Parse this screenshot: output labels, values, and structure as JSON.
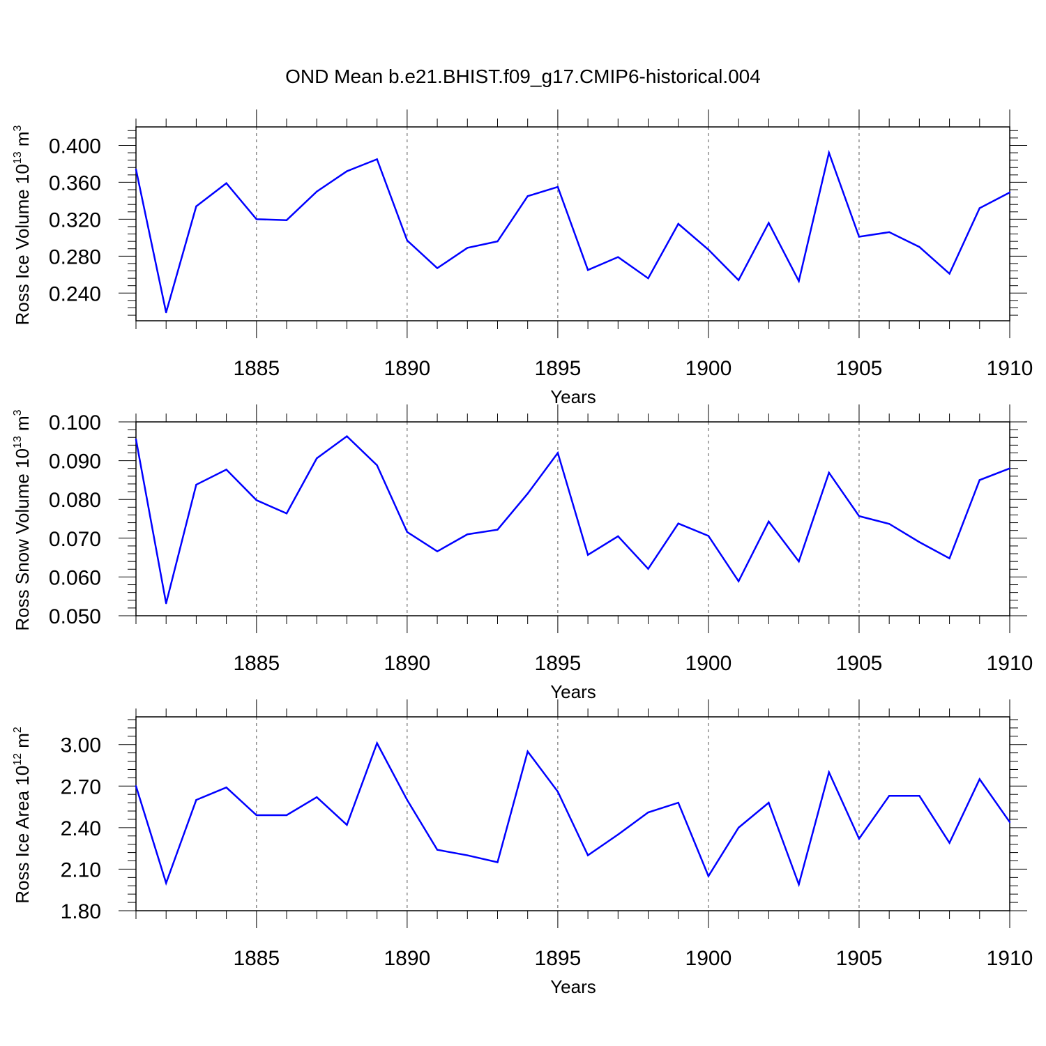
{
  "title": "OND Mean b.e21.BHIST.f09_g17.CMIP6-historical.004",
  "chart_data": [
    {
      "type": "line",
      "name": "ross-ice-volume",
      "ylabel_main": "Ross Ice Volume 10",
      "ylabel_exp": "13",
      "ylabel_unit": " m",
      "ylabel_unit_exp": "3",
      "xlabel": "Years",
      "xlim": [
        1881,
        1910
      ],
      "ylim": [
        0.21,
        0.42
      ],
      "ytick_values": [
        0.24,
        0.28,
        0.32,
        0.36,
        0.4
      ],
      "ytick_labels": [
        "0.240",
        "0.280",
        "0.320",
        "0.360",
        "0.400"
      ],
      "xtick_values": [
        1885,
        1890,
        1895,
        1900,
        1905,
        1910
      ],
      "xtick_labels": [
        "1885",
        "1890",
        "1895",
        "1900",
        "1905",
        "1910"
      ],
      "gridlines": "dashed vertical at major x ticks",
      "line_color": "#0000ff",
      "x": [
        1881,
        1882,
        1883,
        1884,
        1885,
        1886,
        1887,
        1888,
        1889,
        1890,
        1891,
        1892,
        1893,
        1894,
        1895,
        1896,
        1897,
        1898,
        1899,
        1900,
        1901,
        1902,
        1903,
        1904,
        1905,
        1906,
        1907,
        1908,
        1909,
        1910
      ],
      "values": [
        0.374,
        0.219,
        0.334,
        0.359,
        0.32,
        0.319,
        0.35,
        0.372,
        0.385,
        0.297,
        0.267,
        0.289,
        0.296,
        0.345,
        0.355,
        0.265,
        0.279,
        0.256,
        0.315,
        0.287,
        0.254,
        0.316,
        0.253,
        0.392,
        0.301,
        0.306,
        0.29,
        0.261,
        0.332,
        0.349
      ]
    },
    {
      "type": "line",
      "name": "ross-snow-volume",
      "ylabel_main": "Ross Snow Volume 10",
      "ylabel_exp": "13",
      "ylabel_unit": " m",
      "ylabel_unit_exp": "3",
      "xlabel": "Years",
      "xlim": [
        1881,
        1910
      ],
      "ylim": [
        0.05,
        0.1
      ],
      "ytick_values": [
        0.05,
        0.06,
        0.07,
        0.08,
        0.09,
        0.1
      ],
      "ytick_labels": [
        "0.050",
        "0.060",
        "0.070",
        "0.080",
        "0.090",
        "0.100"
      ],
      "xtick_values": [
        1885,
        1890,
        1895,
        1900,
        1905,
        1910
      ],
      "xtick_labels": [
        "1885",
        "1890",
        "1895",
        "1900",
        "1905",
        "1910"
      ],
      "gridlines": "dashed vertical at major x ticks",
      "line_color": "#0000ff",
      "x": [
        1881,
        1882,
        1883,
        1884,
        1885,
        1886,
        1887,
        1888,
        1889,
        1890,
        1891,
        1892,
        1893,
        1894,
        1895,
        1896,
        1897,
        1898,
        1899,
        1900,
        1901,
        1902,
        1903,
        1904,
        1905,
        1906,
        1907,
        1908,
        1909,
        1910
      ],
      "values": [
        0.0955,
        0.0532,
        0.0838,
        0.0877,
        0.0798,
        0.0764,
        0.0906,
        0.0963,
        0.0888,
        0.0716,
        0.0666,
        0.071,
        0.0722,
        0.0815,
        0.092,
        0.0657,
        0.0705,
        0.0621,
        0.0738,
        0.0706,
        0.0589,
        0.0743,
        0.064,
        0.0869,
        0.0757,
        0.0737,
        0.069,
        0.0648,
        0.085,
        0.088
      ]
    },
    {
      "type": "line",
      "name": "ross-ice-area",
      "ylabel_main": "Ross Ice Area 10",
      "ylabel_exp": "12",
      "ylabel_unit": " m",
      "ylabel_unit_exp": "2",
      "xlabel": "Years",
      "xlim": [
        1881,
        1910
      ],
      "ylim": [
        1.8,
        3.2
      ],
      "ytick_values": [
        1.8,
        2.1,
        2.4,
        2.7,
        3.0
      ],
      "ytick_labels": [
        "1.80",
        "2.10",
        "2.40",
        "2.70",
        "3.00"
      ],
      "xtick_values": [
        1885,
        1890,
        1895,
        1900,
        1905,
        1910
      ],
      "xtick_labels": [
        "1885",
        "1890",
        "1895",
        "1900",
        "1905",
        "1910"
      ],
      "gridlines": "dashed vertical at major x ticks",
      "line_color": "#0000ff",
      "x": [
        1881,
        1882,
        1883,
        1884,
        1885,
        1886,
        1887,
        1888,
        1889,
        1890,
        1891,
        1892,
        1893,
        1894,
        1895,
        1896,
        1897,
        1898,
        1899,
        1900,
        1901,
        1902,
        1903,
        1904,
        1905,
        1906,
        1907,
        1908,
        1909,
        1910
      ],
      "values": [
        2.7,
        2.0,
        2.6,
        2.69,
        2.49,
        2.49,
        2.62,
        2.42,
        3.01,
        2.6,
        2.24,
        2.2,
        2.15,
        2.95,
        2.66,
        2.2,
        2.35,
        2.51,
        2.58,
        2.05,
        2.4,
        2.58,
        1.99,
        2.8,
        2.32,
        2.63,
        2.63,
        2.29,
        2.75,
        2.44
      ]
    }
  ]
}
